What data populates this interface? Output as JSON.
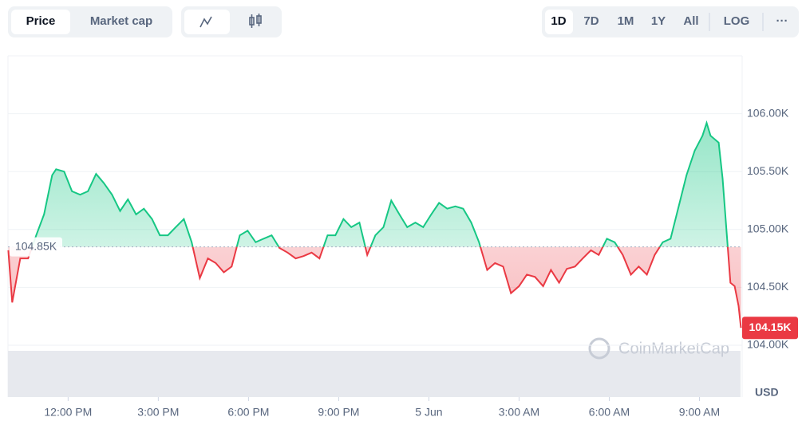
{
  "controls": {
    "tabs": [
      "Price",
      "Market cap"
    ],
    "ranges": [
      "1D",
      "7D",
      "1M",
      "1Y",
      "All"
    ],
    "log": "LOG",
    "more": "···"
  },
  "watermark": "CoinMarketCap",
  "chart_data": {
    "type": "line",
    "currency": "USD",
    "x": [
      10.01,
      10.14,
      10.41,
      10.67,
      10.94,
      11.2,
      11.47,
      11.6,
      11.87,
      12.13,
      12.4,
      12.66,
      12.93,
      13.19,
      13.46,
      13.73,
      13.99,
      14.26,
      14.52,
      14.79,
      15.05,
      15.32,
      15.58,
      15.85,
      16.11,
      16.38,
      16.65,
      16.91,
      17.18,
      17.44,
      17.71,
      17.97,
      18.24,
      18.5,
      18.77,
      19.03,
      19.3,
      19.57,
      19.83,
      20.1,
      20.36,
      20.63,
      20.89,
      21.16,
      21.42,
      21.69,
      21.95,
      22.22,
      22.49,
      22.75,
      23.02,
      23.28,
      23.55,
      23.81,
      24.08,
      24.34,
      24.61,
      24.88,
      25.14,
      25.41,
      25.67,
      25.94,
      26.2,
      26.47,
      26.73,
      27.0,
      27.26,
      27.53,
      27.8,
      28.06,
      28.33,
      28.59,
      28.86,
      29.12,
      29.39,
      29.65,
      29.92,
      30.18,
      30.45,
      30.72,
      30.98,
      31.25,
      31.51,
      31.78,
      32.04,
      32.31,
      32.57,
      32.84,
      33.1,
      33.24,
      33.37,
      33.64,
      33.77,
      33.9,
      34.03,
      34.17,
      34.3,
      34.38
    ],
    "series": [
      {
        "name": "Price",
        "color_up": "#16c784",
        "color_down": "#ea3943",
        "last_label": "104.15K",
        "values": [
          104820,
          104370,
          104750,
          104750,
          104950,
          105130,
          105470,
          105520,
          105500,
          105330,
          105300,
          105330,
          105480,
          105400,
          105300,
          105160,
          105260,
          105130,
          105180,
          105090,
          104950,
          104950,
          105020,
          105090,
          104890,
          104580,
          104750,
          104710,
          104630,
          104680,
          104950,
          104990,
          104890,
          104920,
          104950,
          104840,
          104800,
          104750,
          104770,
          104800,
          104750,
          104950,
          104950,
          105090,
          105020,
          105060,
          104780,
          104950,
          105020,
          105250,
          105130,
          105020,
          105060,
          105020,
          105130,
          105230,
          105180,
          105200,
          105180,
          105060,
          104890,
          104650,
          104710,
          104680,
          104450,
          104510,
          104610,
          104590,
          104510,
          104650,
          104540,
          104660,
          104680,
          104750,
          104820,
          104780,
          104920,
          104890,
          104780,
          104610,
          104680,
          104610,
          104780,
          104890,
          104920,
          105200,
          105470,
          105680,
          105810,
          105920,
          105810,
          105750,
          105440,
          104990,
          104540,
          104510,
          104340,
          104150
        ]
      }
    ],
    "reference_line": {
      "value": 104850,
      "label": "104.85K"
    },
    "xlim": [
      10,
      34.5
    ],
    "xticks": [
      {
        "value": 12,
        "label": "12:00 PM"
      },
      {
        "value": 15,
        "label": "3:00 PM"
      },
      {
        "value": 18,
        "label": "6:00 PM"
      },
      {
        "value": 21,
        "label": "9:00 PM"
      },
      {
        "value": 24,
        "label": "5 Jun"
      },
      {
        "value": 27,
        "label": "3:00 AM"
      },
      {
        "value": 30,
        "label": "6:00 AM"
      },
      {
        "value": 33,
        "label": "9:00 AM"
      }
    ],
    "ylim": [
      104000,
      106500
    ],
    "yticks": [
      {
        "value": 104000,
        "label": "104.00K"
      },
      {
        "value": 104500,
        "label": "104.50K"
      },
      {
        "value": 105000,
        "label": "105.00K"
      },
      {
        "value": 105500,
        "label": "105.50K"
      },
      {
        "value": 106000,
        "label": "106.00K"
      }
    ],
    "grid": true
  }
}
